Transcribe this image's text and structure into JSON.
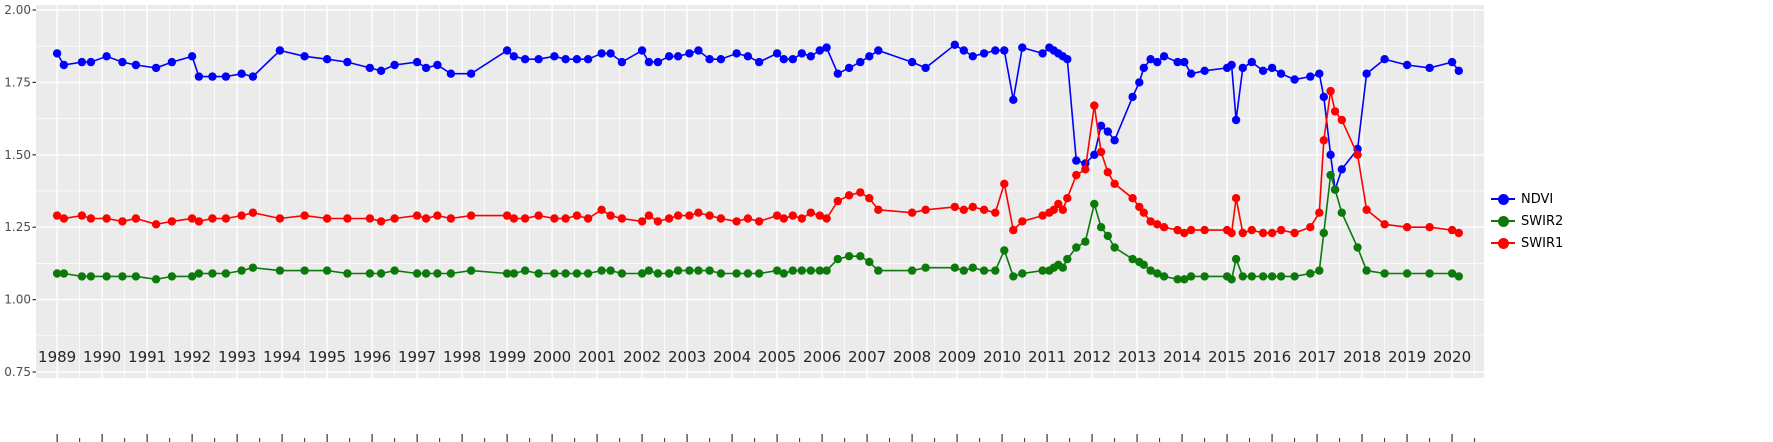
{
  "chart_data": {
    "type": "line",
    "title": "",
    "xlabel": "",
    "ylabel": "",
    "panel_bg": "#EBEBEB",
    "grid_color": "#FFFFFF",
    "grid": "major and minor white gridlines on grey panel",
    "legend_position": "right",
    "xlim": [
      1988.53,
      2020.71
    ],
    "ylim": [
      0.75,
      2.0
    ],
    "yticks": [
      {
        "value": 2.0,
        "label": "2.00"
      },
      {
        "value": 1.75,
        "label": "1.75"
      },
      {
        "value": 1.5,
        "label": "1.50"
      },
      {
        "value": 1.25,
        "label": "1.25"
      },
      {
        "value": 1.0,
        "label": "1.00"
      },
      {
        "value": 0.75,
        "label": "0.75"
      }
    ],
    "xticks": [
      1989,
      1990,
      1991,
      1992,
      1993,
      1994,
      1995,
      1996,
      1997,
      1998,
      1999,
      2000,
      2001,
      2002,
      2003,
      2004,
      2005,
      2006,
      2007,
      2008,
      2009,
      2010,
      2011,
      2012,
      2013,
      2014,
      2015,
      2016,
      2017,
      2018,
      2019,
      2020
    ],
    "x": [
      1989.0,
      1989.15,
      1989.55,
      1989.75,
      1990.1,
      1990.45,
      1990.75,
      1991.2,
      1991.55,
      1992.0,
      1992.15,
      1992.45,
      1992.75,
      1993.1,
      1993.35,
      1993.95,
      1994.5,
      1995.0,
      1995.45,
      1995.95,
      1996.2,
      1996.5,
      1997.0,
      1997.2,
      1997.45,
      1997.75,
      1998.2,
      1999.0,
      1999.15,
      1999.4,
      1999.7,
      2000.05,
      2000.3,
      2000.55,
      2000.8,
      2001.1,
      2001.3,
      2001.55,
      2002.0,
      2002.15,
      2002.35,
      2002.6,
      2002.8,
      2003.05,
      2003.25,
      2003.5,
      2003.75,
      2004.1,
      2004.35,
      2004.6,
      2005.0,
      2005.15,
      2005.35,
      2005.55,
      2005.75,
      2005.95,
      2006.1,
      2006.35,
      2006.6,
      2006.85,
      2007.05,
      2007.25,
      2008.0,
      2008.3,
      2008.95,
      2009.15,
      2009.35,
      2009.6,
      2009.85,
      2010.05,
      2010.25,
      2010.45,
      2010.9,
      2011.05,
      2011.15,
      2011.25,
      2011.35,
      2011.45,
      2011.65,
      2011.85,
      2012.05,
      2012.2,
      2012.35,
      2012.5,
      2012.9,
      2013.05,
      2013.15,
      2013.3,
      2013.45,
      2013.6,
      2013.9,
      2014.05,
      2014.2,
      2014.5,
      2015.0,
      2015.1,
      2015.2,
      2015.35,
      2015.55,
      2015.8,
      2016.0,
      2016.2,
      2016.5,
      2016.85,
      2017.05,
      2017.15,
      2017.3,
      2017.4,
      2017.55,
      2017.9,
      2018.1,
      2018.5,
      2019.0,
      2019.5,
      2020.0,
      2020.15
    ],
    "series": [
      {
        "name": "NDVI",
        "color": "#0000FF",
        "values": [
          1.85,
          1.81,
          1.82,
          1.82,
          1.84,
          1.82,
          1.81,
          1.8,
          1.82,
          1.84,
          1.77,
          1.77,
          1.77,
          1.78,
          1.77,
          1.86,
          1.84,
          1.83,
          1.82,
          1.8,
          1.79,
          1.81,
          1.82,
          1.8,
          1.81,
          1.78,
          1.78,
          1.86,
          1.84,
          1.83,
          1.83,
          1.84,
          1.83,
          1.83,
          1.83,
          1.85,
          1.85,
          1.82,
          1.86,
          1.82,
          1.82,
          1.84,
          1.84,
          1.85,
          1.86,
          1.83,
          1.83,
          1.85,
          1.84,
          1.82,
          1.85,
          1.83,
          1.83,
          1.85,
          1.84,
          1.86,
          1.87,
          1.78,
          1.8,
          1.82,
          1.84,
          1.86,
          1.82,
          1.8,
          1.88,
          1.86,
          1.84,
          1.85,
          1.86,
          1.86,
          1.69,
          1.87,
          1.85,
          1.87,
          1.86,
          1.85,
          1.84,
          1.83,
          1.48,
          1.47,
          1.5,
          1.6,
          1.58,
          1.55,
          1.7,
          1.75,
          1.8,
          1.83,
          1.82,
          1.84,
          1.82,
          1.82,
          1.78,
          1.79,
          1.8,
          1.81,
          1.62,
          1.8,
          1.82,
          1.79,
          1.8,
          1.78,
          1.76,
          1.77,
          1.78,
          1.7,
          1.5,
          1.38,
          1.45,
          1.52,
          1.78,
          1.83,
          1.81,
          1.8,
          1.82,
          1.79
        ]
      },
      {
        "name": "SWIR2",
        "color": "#0B7A0B",
        "values": [
          1.09,
          1.09,
          1.08,
          1.08,
          1.08,
          1.08,
          1.08,
          1.07,
          1.08,
          1.08,
          1.09,
          1.09,
          1.09,
          1.1,
          1.11,
          1.1,
          1.1,
          1.1,
          1.09,
          1.09,
          1.09,
          1.1,
          1.09,
          1.09,
          1.09,
          1.09,
          1.1,
          1.09,
          1.09,
          1.1,
          1.09,
          1.09,
          1.09,
          1.09,
          1.09,
          1.1,
          1.1,
          1.09,
          1.09,
          1.1,
          1.09,
          1.09,
          1.1,
          1.1,
          1.1,
          1.1,
          1.09,
          1.09,
          1.09,
          1.09,
          1.1,
          1.09,
          1.1,
          1.1,
          1.1,
          1.1,
          1.1,
          1.14,
          1.15,
          1.15,
          1.13,
          1.1,
          1.1,
          1.11,
          1.11,
          1.1,
          1.11,
          1.1,
          1.1,
          1.17,
          1.08,
          1.09,
          1.1,
          1.1,
          1.11,
          1.12,
          1.11,
          1.14,
          1.18,
          1.2,
          1.33,
          1.25,
          1.22,
          1.18,
          1.14,
          1.13,
          1.12,
          1.1,
          1.09,
          1.08,
          1.07,
          1.07,
          1.08,
          1.08,
          1.08,
          1.07,
          1.14,
          1.08,
          1.08,
          1.08,
          1.08,
          1.08,
          1.08,
          1.09,
          1.1,
          1.23,
          1.43,
          1.38,
          1.3,
          1.18,
          1.1,
          1.09,
          1.09,
          1.09,
          1.09,
          1.08
        ]
      },
      {
        "name": "SWIR1",
        "color": "#FF0000",
        "values": [
          1.29,
          1.28,
          1.29,
          1.28,
          1.28,
          1.27,
          1.28,
          1.26,
          1.27,
          1.28,
          1.27,
          1.28,
          1.28,
          1.29,
          1.3,
          1.28,
          1.29,
          1.28,
          1.28,
          1.28,
          1.27,
          1.28,
          1.29,
          1.28,
          1.29,
          1.28,
          1.29,
          1.29,
          1.28,
          1.28,
          1.29,
          1.28,
          1.28,
          1.29,
          1.28,
          1.31,
          1.29,
          1.28,
          1.27,
          1.29,
          1.27,
          1.28,
          1.29,
          1.29,
          1.3,
          1.29,
          1.28,
          1.27,
          1.28,
          1.27,
          1.29,
          1.28,
          1.29,
          1.28,
          1.3,
          1.29,
          1.28,
          1.34,
          1.36,
          1.37,
          1.35,
          1.31,
          1.3,
          1.31,
          1.32,
          1.31,
          1.32,
          1.31,
          1.3,
          1.4,
          1.24,
          1.27,
          1.29,
          1.3,
          1.31,
          1.33,
          1.31,
          1.35,
          1.43,
          1.45,
          1.67,
          1.51,
          1.44,
          1.4,
          1.35,
          1.32,
          1.3,
          1.27,
          1.26,
          1.25,
          1.24,
          1.23,
          1.24,
          1.24,
          1.24,
          1.23,
          1.35,
          1.23,
          1.24,
          1.23,
          1.23,
          1.24,
          1.23,
          1.25,
          1.3,
          1.55,
          1.72,
          1.65,
          1.62,
          1.5,
          1.31,
          1.26,
          1.25,
          1.25,
          1.24,
          1.23
        ]
      }
    ]
  }
}
